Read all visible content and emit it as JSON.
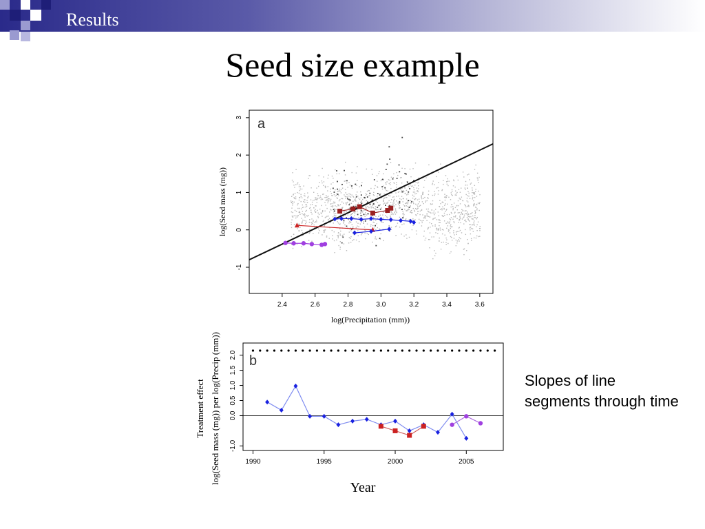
{
  "section": "Results",
  "title": "Seed size example",
  "side_note": "Slopes of line segments through time",
  "colors": {
    "banner_dark": "#2a2a8a",
    "red": "#cc2222",
    "blue": "#1a22e0",
    "purple": "#a040e0",
    "grey_points": "#b8b8b8",
    "dark_points": "#444444"
  },
  "chart_data": [
    {
      "type": "scatter",
      "panel_label": "a",
      "xlabel": "log(Precipitation (mm))",
      "ylabel": "log(Seed mass (mg))",
      "xlim": [
        2.2,
        3.68
      ],
      "ylim": [
        -1.7,
        3.2
      ],
      "xticks": [
        "2.4",
        "2.6",
        "2.8",
        "3.0",
        "3.2",
        "3.4",
        "3.6"
      ],
      "yticks": [
        "-1",
        "0",
        "1",
        "2",
        "3"
      ],
      "regression_line": {
        "x": [
          2.2,
          3.68
        ],
        "y": [
          -0.8,
          2.3
        ]
      },
      "series": [
        {
          "color": "red",
          "marker": "triangle",
          "x": [
            2.49,
            2.95
          ],
          "y": [
            0.12,
            0.0
          ]
        },
        {
          "color": "purple",
          "marker": "circle",
          "x": [
            2.42,
            2.47,
            2.53,
            2.58,
            2.64,
            2.66
          ],
          "y": [
            -0.35,
            -0.36,
            -0.36,
            -0.38,
            -0.4,
            -0.38
          ]
        },
        {
          "color": "blue",
          "marker": "diamond",
          "x": [
            2.72,
            2.76,
            2.82,
            2.88,
            2.94,
            3.0,
            3.06,
            3.12,
            3.18,
            3.2
          ],
          "y": [
            0.29,
            0.3,
            0.3,
            0.28,
            0.3,
            0.28,
            0.27,
            0.25,
            0.23,
            0.2
          ]
        },
        {
          "color": "blue",
          "marker": "diamond",
          "x": [
            2.84,
            2.94,
            3.05
          ],
          "y": [
            -0.08,
            -0.04,
            0.02
          ]
        },
        {
          "color": "darkred",
          "marker": "square",
          "x": [
            2.75,
            2.83,
            2.87,
            2.95,
            3.04,
            3.06
          ],
          "y": [
            0.5,
            0.56,
            0.62,
            0.45,
            0.52,
            0.58
          ]
        }
      ]
    },
    {
      "type": "line",
      "panel_label": "b",
      "xlabel": "Year",
      "ylabel_lines": [
        "Treatment effect",
        "log(Seed mass (mg)) per log(Precip (mm))"
      ],
      "xlim": [
        1989.3,
        2007.6
      ],
      "ylim": [
        -1.15,
        2.4
      ],
      "xticks": [
        "1990",
        "1995",
        "2000",
        "2005"
      ],
      "yticks": [
        "-1.0",
        "0.0",
        "0.5",
        "1.0",
        "1.5",
        "2.0"
      ],
      "reference_line_y": 0,
      "top_dots_y": 2.15,
      "top_dots_years": [
        1990,
        1990.5,
        1991,
        1991.5,
        1992,
        1992.5,
        1993,
        1993.5,
        1994,
        1994.5,
        1995,
        1995.5,
        1996,
        1996.5,
        1997,
        1997.5,
        1998,
        1998.5,
        1999,
        1999.5,
        2000,
        2000.5,
        2001,
        2001.5,
        2002,
        2002.5,
        2003,
        2003.5,
        2004,
        2004.5,
        2005,
        2005.5,
        2006,
        2006.5,
        2007
      ],
      "series": [
        {
          "color": "blue",
          "x": [
            1991,
            1992,
            1993,
            1994,
            1995,
            1996,
            1997,
            1998,
            1999,
            2000,
            2001,
            2002,
            2003,
            2004,
            2005
          ],
          "y": [
            0.45,
            0.18,
            0.98,
            -0.02,
            -0.02,
            -0.3,
            -0.18,
            -0.12,
            -0.3,
            -0.18,
            -0.5,
            -0.3,
            -0.55,
            0.05,
            -0.75
          ]
        },
        {
          "color": "red",
          "x": [
            1999,
            2000,
            2001,
            2002
          ],
          "y": [
            -0.35,
            -0.5,
            -0.65,
            -0.35
          ]
        },
        {
          "color": "purple",
          "x": [
            2004,
            2005,
            2006
          ],
          "y": [
            -0.3,
            -0.02,
            -0.25
          ]
        }
      ]
    }
  ]
}
